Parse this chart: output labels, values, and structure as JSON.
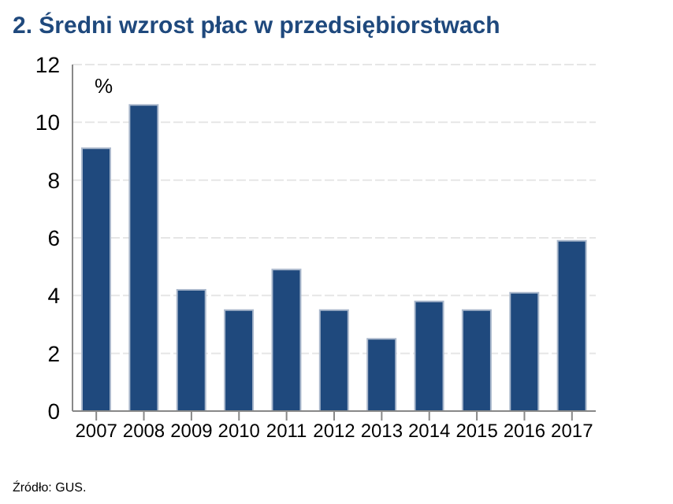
{
  "chart_data": {
    "type": "bar",
    "title": "2. Średni wzrost płac w przedsiębiorstwach",
    "ylabel": "%",
    "categories": [
      "2007",
      "2008",
      "2009",
      "2010",
      "2011",
      "2012",
      "2013",
      "2014",
      "2015",
      "2016",
      "2017"
    ],
    "values": [
      9.1,
      10.6,
      4.2,
      3.5,
      4.9,
      3.5,
      2.5,
      3.8,
      3.5,
      4.1,
      5.9
    ],
    "color": "#1f497d",
    "ylim": [
      0,
      12
    ],
    "yticks": [
      0,
      2,
      4,
      6,
      8,
      10,
      12
    ],
    "grid": "y",
    "annotations": [
      "Źródło: GUS."
    ]
  }
}
